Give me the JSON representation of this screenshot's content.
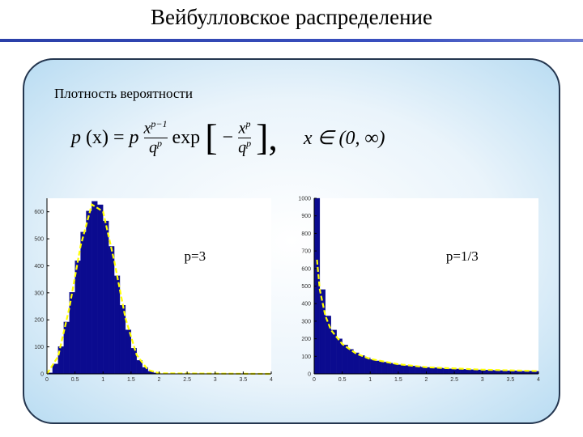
{
  "title": "Вейбулловское распределение",
  "label": "Плотность вероятности",
  "formula": {
    "lhs": "p",
    "arg": "(x)",
    "eq": "=",
    "coef": "p",
    "num_base": "x",
    "num_exp": "p−1",
    "den_base": "q",
    "den_exp": "p",
    "func": "exp",
    "lbr": "[",
    "minus": "−",
    "num2_base": "x",
    "num2_exp": "p",
    "den2_base": "q",
    "den2_exp": "p",
    "rbr": "],",
    "domain": "x ∈ (0, ∞)"
  },
  "chart_data": [
    {
      "type": "histogram",
      "annotation": "p=3",
      "color": "#0b0b8f",
      "bins": [
        0,
        0.1,
        0.2,
        0.3,
        0.4,
        0.5,
        0.6,
        0.7,
        0.8,
        0.9,
        1.0,
        1.1,
        1.2,
        1.3,
        1.4,
        1.5,
        1.6,
        1.7,
        1.8,
        1.9,
        2.0
      ],
      "values": [
        4,
        37,
        101,
        192,
        302,
        419,
        525,
        603,
        639,
        626,
        566,
        472,
        363,
        254,
        163,
        95,
        50,
        24,
        10,
        4
      ],
      "fit_line": {
        "color": "#ffff00",
        "x": [
          0,
          0.2,
          0.4,
          0.6,
          0.8,
          1.0,
          1.2,
          1.4,
          1.6,
          1.8,
          2.0,
          4.0
        ],
        "values": [
          0,
          65,
          245,
          474,
          627,
          601,
          418,
          206,
          70,
          15,
          2,
          0
        ]
      },
      "xlim": [
        0,
        4
      ],
      "ylim": [
        0,
        650
      ],
      "xticks": [
        0,
        0.5,
        1,
        1.5,
        2,
        2.5,
        3,
        3.5,
        4
      ],
      "yticks": [
        0,
        100,
        200,
        300,
        400,
        500,
        600
      ]
    },
    {
      "type": "histogram",
      "annotation": "p=1/3",
      "color": "#0b0b8f",
      "bins": [
        0,
        0.1,
        0.2,
        0.3,
        0.4,
        0.5,
        0.6,
        0.7,
        0.8,
        0.9,
        1.0,
        1.1,
        1.2,
        1.3,
        1.4,
        1.5,
        1.6,
        1.7,
        1.8,
        1.9,
        2.0,
        2.1,
        2.2,
        2.3,
        2.4,
        2.5,
        2.6,
        2.7,
        2.8,
        2.9,
        3.0,
        3.1,
        3.2,
        3.3,
        3.4,
        3.5,
        3.6,
        3.7,
        3.8,
        3.9,
        4.0
      ],
      "values": [
        1000,
        480,
        330,
        250,
        200,
        165,
        140,
        120,
        105,
        92,
        82,
        74,
        67,
        61,
        56,
        52,
        48,
        45,
        42,
        39,
        37,
        35,
        33,
        31,
        29,
        28,
        26,
        25,
        24,
        23,
        22,
        21,
        20,
        19,
        18,
        18,
        17,
        16,
        16,
        15
      ],
      "fit_line": {
        "color": "#ffff00",
        "x": [
          0.05,
          0.1,
          0.2,
          0.3,
          0.5,
          0.75,
          1,
          1.5,
          2,
          3,
          4
        ],
        "values": [
          650,
          480,
          330,
          250,
          170,
          115,
          85,
          55,
          38,
          24,
          16
        ]
      },
      "xlim": [
        0,
        4
      ],
      "ylim": [
        0,
        1000
      ],
      "xticks": [
        0,
        0.5,
        1,
        1.5,
        2,
        2.5,
        3,
        3.5,
        4
      ],
      "yticks": [
        0,
        100,
        200,
        300,
        400,
        500,
        600,
        700,
        800,
        900,
        1000
      ]
    }
  ]
}
